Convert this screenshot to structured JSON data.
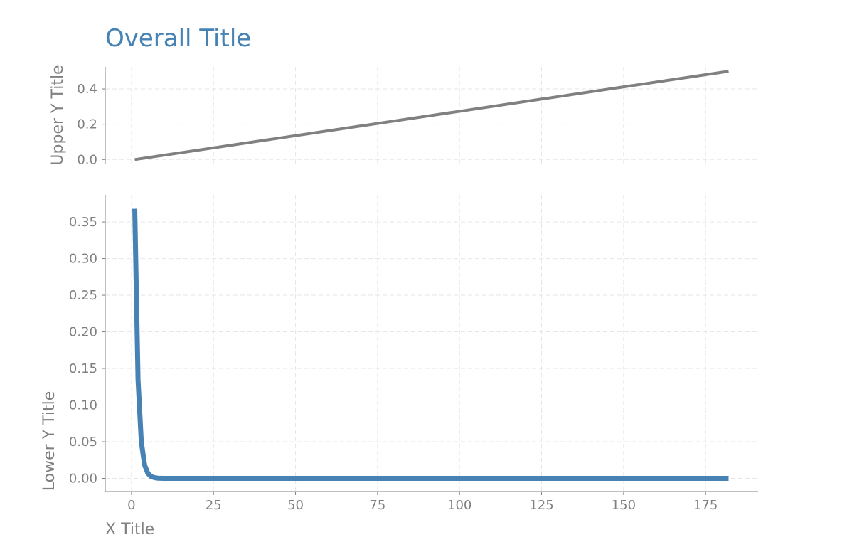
{
  "chart_data": {
    "type": "line",
    "title": "Overall Title",
    "title_color": "#4682b4",
    "xlabel": "X Title",
    "xlim": [
      -8,
      191
    ],
    "xticks": [
      "0",
      "25",
      "50",
      "75",
      "100",
      "125",
      "150",
      "175"
    ],
    "grid": true,
    "panels": [
      {
        "position": "upper",
        "ylabel": "Upper Y Title",
        "ylim": [
          -0.027,
          0.525
        ],
        "yticks": [
          "0.0",
          "0.2",
          "0.4"
        ],
        "series": [
          {
            "color": "#808080",
            "x": [
              1,
              182
            ],
            "y": [
              0.0,
              0.5
            ]
          }
        ]
      },
      {
        "position": "lower",
        "ylabel": "Lower Y Title",
        "ylim": [
          -0.018,
          0.387
        ],
        "yticks": [
          "0.00",
          "0.05",
          "0.10",
          "0.15",
          "0.20",
          "0.25",
          "0.30",
          "0.35"
        ],
        "series": [
          {
            "color": "#4682b4",
            "x": [
              1,
              2,
              3,
              4,
              5,
              6,
              7,
              8,
              9,
              10,
              12,
              15,
              20,
              30,
              50,
              100,
              150,
              182
            ],
            "y": [
              0.368,
              0.135,
              0.05,
              0.018,
              0.0067,
              0.0025,
              0.0009,
              0.0003,
              0.0001,
              0.0,
              0.0,
              0.0,
              0.0,
              0.0,
              0.0,
              0.0,
              0.0,
              0.0
            ]
          }
        ]
      }
    ]
  }
}
